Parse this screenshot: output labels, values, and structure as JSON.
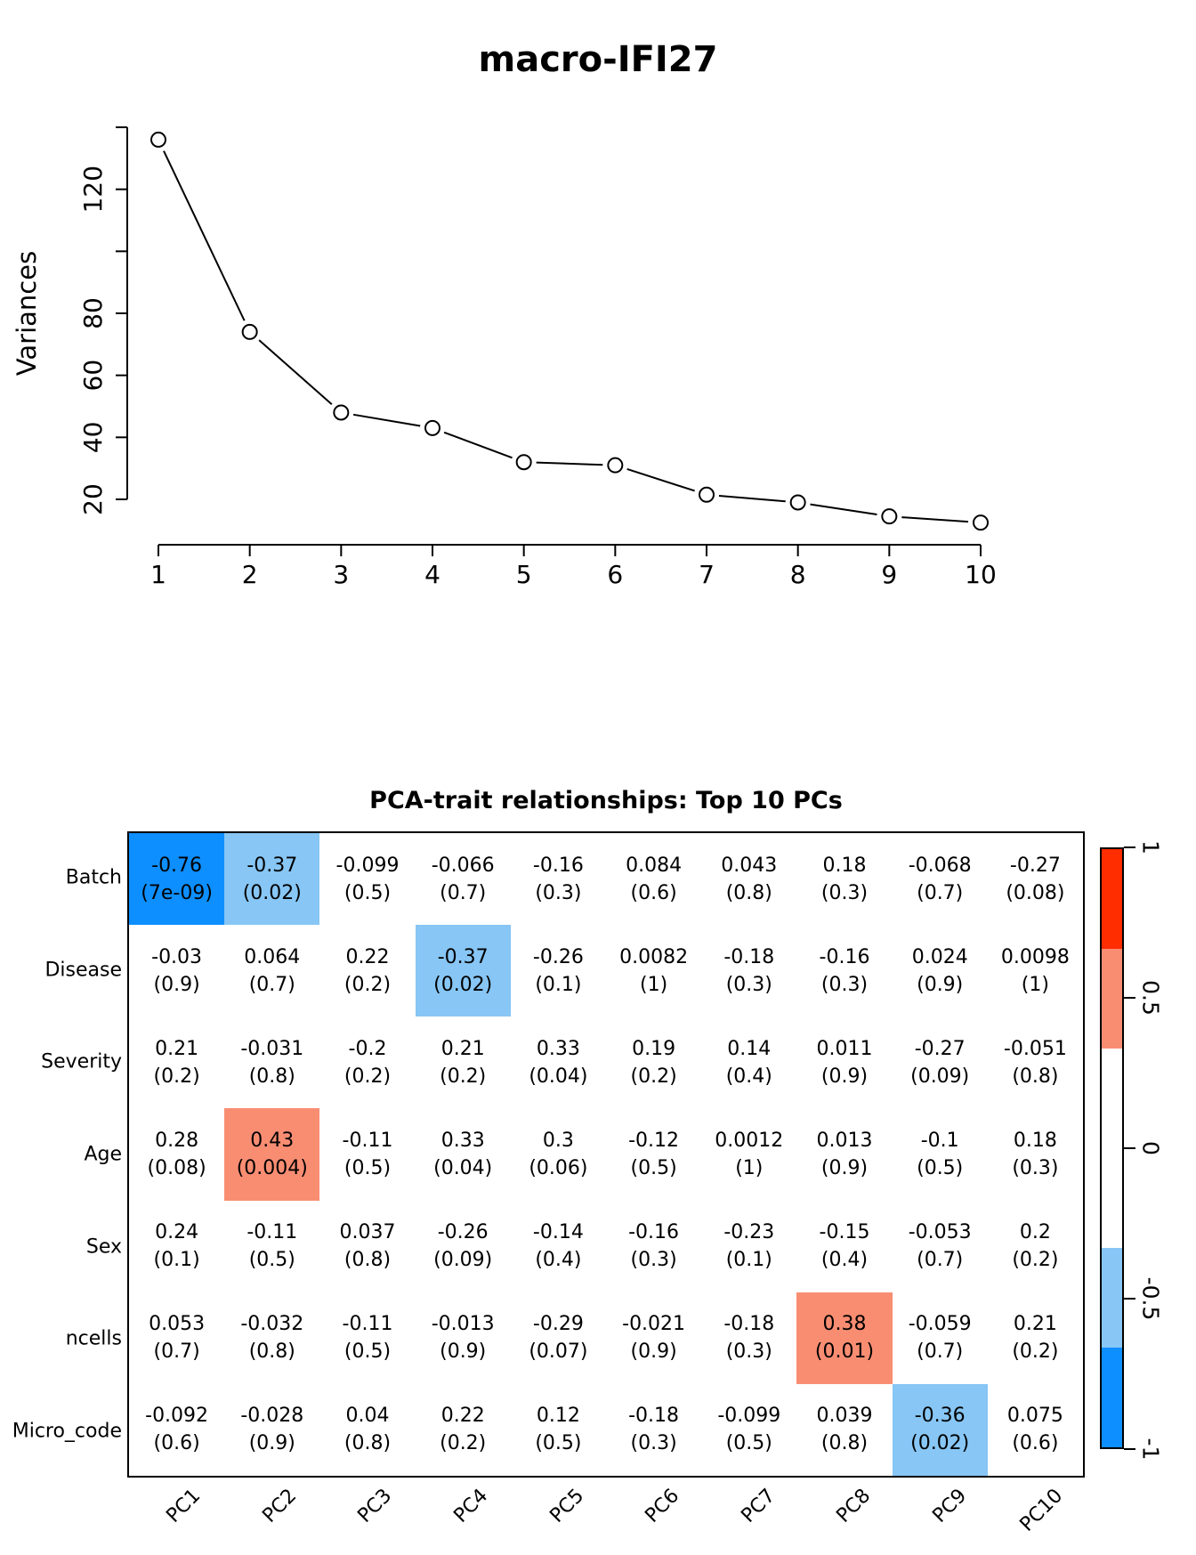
{
  "figure": {
    "background": "#ffffff"
  },
  "chart_data": [
    {
      "type": "line",
      "title": "macro-IFI27",
      "ylabel": "Variances",
      "xlabel": "",
      "x": [
        1,
        2,
        3,
        4,
        5,
        6,
        7,
        8,
        9,
        10
      ],
      "values": [
        136,
        74,
        48,
        43,
        32,
        31,
        21.5,
        19,
        14.5,
        12.5
      ],
      "x_tick_labels": [
        "1",
        "2",
        "3",
        "4",
        "5",
        "6",
        "7",
        "8",
        "9",
        "10"
      ],
      "y_ticks": [
        20,
        40,
        60,
        80,
        100,
        120,
        140
      ],
      "y_tick_labels": [
        "20",
        "40",
        "60",
        "80",
        "",
        "120",
        ""
      ],
      "ylim": [
        20,
        140
      ],
      "marker": "open-circle",
      "line_color": "#000000",
      "legend": "none",
      "grid": "off"
    },
    {
      "type": "heatmap",
      "title": "PCA-trait relationships: Top 10 PCs",
      "rows": [
        "Batch",
        "Disease",
        "Severity",
        "Age",
        "Sex",
        "ncells",
        "Micro_code"
      ],
      "columns": [
        "PC1",
        "PC2",
        "PC3",
        "PC4",
        "PC5",
        "PC6",
        "PC7",
        "PC8",
        "PC9",
        "PC10"
      ],
      "cells": [
        [
          {
            "r": "-0.76",
            "p": "(7e-09)"
          },
          {
            "r": "-0.37",
            "p": "(0.02)"
          },
          {
            "r": "-0.099",
            "p": "(0.5)"
          },
          {
            "r": "-0.066",
            "p": "(0.7)"
          },
          {
            "r": "-0.16",
            "p": "(0.3)"
          },
          {
            "r": "0.084",
            "p": "(0.6)"
          },
          {
            "r": "0.043",
            "p": "(0.8)"
          },
          {
            "r": "0.18",
            "p": "(0.3)"
          },
          {
            "r": "-0.068",
            "p": "(0.7)"
          },
          {
            "r": "-0.27",
            "p": "(0.08)"
          }
        ],
        [
          {
            "r": "-0.03",
            "p": "(0.9)"
          },
          {
            "r": "0.064",
            "p": "(0.7)"
          },
          {
            "r": "0.22",
            "p": "(0.2)"
          },
          {
            "r": "-0.37",
            "p": "(0.02)"
          },
          {
            "r": "-0.26",
            "p": "(0.1)"
          },
          {
            "r": "0.0082",
            "p": "(1)"
          },
          {
            "r": "-0.18",
            "p": "(0.3)"
          },
          {
            "r": "-0.16",
            "p": "(0.3)"
          },
          {
            "r": "0.024",
            "p": "(0.9)"
          },
          {
            "r": "0.0098",
            "p": "(1)"
          }
        ],
        [
          {
            "r": "0.21",
            "p": "(0.2)"
          },
          {
            "r": "-0.031",
            "p": "(0.8)"
          },
          {
            "r": "-0.2",
            "p": "(0.2)"
          },
          {
            "r": "0.21",
            "p": "(0.2)"
          },
          {
            "r": "0.33",
            "p": "(0.04)"
          },
          {
            "r": "0.19",
            "p": "(0.2)"
          },
          {
            "r": "0.14",
            "p": "(0.4)"
          },
          {
            "r": "0.011",
            "p": "(0.9)"
          },
          {
            "r": "-0.27",
            "p": "(0.09)"
          },
          {
            "r": "-0.051",
            "p": "(0.8)"
          }
        ],
        [
          {
            "r": "0.28",
            "p": "(0.08)"
          },
          {
            "r": "0.43",
            "p": "(0.004)"
          },
          {
            "r": "-0.11",
            "p": "(0.5)"
          },
          {
            "r": "0.33",
            "p": "(0.04)"
          },
          {
            "r": "0.3",
            "p": "(0.06)"
          },
          {
            "r": "-0.12",
            "p": "(0.5)"
          },
          {
            "r": "0.0012",
            "p": "(1)"
          },
          {
            "r": "0.013",
            "p": "(0.9)"
          },
          {
            "r": "-0.1",
            "p": "(0.5)"
          },
          {
            "r": "0.18",
            "p": "(0.3)"
          }
        ],
        [
          {
            "r": "0.24",
            "p": "(0.1)"
          },
          {
            "r": "-0.11",
            "p": "(0.5)"
          },
          {
            "r": "0.037",
            "p": "(0.8)"
          },
          {
            "r": "-0.26",
            "p": "(0.09)"
          },
          {
            "r": "-0.14",
            "p": "(0.4)"
          },
          {
            "r": "-0.16",
            "p": "(0.3)"
          },
          {
            "r": "-0.23",
            "p": "(0.1)"
          },
          {
            "r": "-0.15",
            "p": "(0.4)"
          },
          {
            "r": "-0.053",
            "p": "(0.7)"
          },
          {
            "r": "0.2",
            "p": "(0.2)"
          }
        ],
        [
          {
            "r": "0.053",
            "p": "(0.7)"
          },
          {
            "r": "-0.032",
            "p": "(0.8)"
          },
          {
            "r": "-0.11",
            "p": "(0.5)"
          },
          {
            "r": "-0.013",
            "p": "(0.9)"
          },
          {
            "r": "-0.29",
            "p": "(0.07)"
          },
          {
            "r": "-0.021",
            "p": "(0.9)"
          },
          {
            "r": "-0.18",
            "p": "(0.3)"
          },
          {
            "r": "0.38",
            "p": "(0.01)"
          },
          {
            "r": "-0.059",
            "p": "(0.7)"
          },
          {
            "r": "0.21",
            "p": "(0.2)"
          }
        ],
        [
          {
            "r": "-0.092",
            "p": "(0.6)"
          },
          {
            "r": "-0.028",
            "p": "(0.9)"
          },
          {
            "r": "0.04",
            "p": "(0.8)"
          },
          {
            "r": "0.22",
            "p": "(0.2)"
          },
          {
            "r": "0.12",
            "p": "(0.5)"
          },
          {
            "r": "-0.18",
            "p": "(0.3)"
          },
          {
            "r": "-0.099",
            "p": "(0.5)"
          },
          {
            "r": "0.039",
            "p": "(0.8)"
          },
          {
            "r": "-0.36",
            "p": "(0.02)"
          },
          {
            "r": "0.075",
            "p": "(0.6)"
          }
        ]
      ],
      "colorbar": {
        "tick_labels": [
          "1",
          "0.5",
          "0",
          "-0.5",
          "-1"
        ],
        "band_thresholds": [
          0.667,
          0.333,
          -0.333,
          -0.667
        ],
        "band_colors": [
          "#FF2D00",
          "#F98D72",
          "#FFFFFF",
          "#87C6F5",
          "#0E8FFF"
        ],
        "band_fractions": [
          0.1667,
          0.1667,
          0.3332,
          0.1667,
          0.1667
        ]
      },
      "palette": {
        "strong_positive": "#FF2D00",
        "moderate_positive": "#F98D72",
        "neutral": "#FFFFFF",
        "moderate_negative": "#87C6F5",
        "strong_negative": "#0E8FFF"
      }
    }
  ]
}
